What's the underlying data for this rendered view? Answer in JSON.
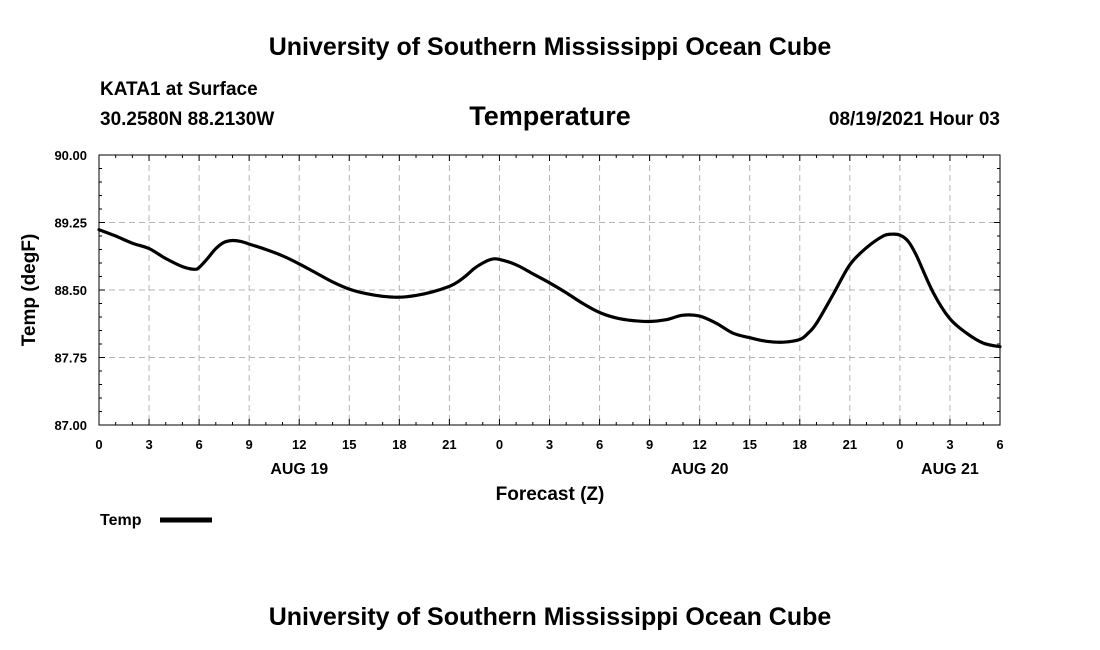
{
  "header": {
    "top_title": "University of Southern Mississippi Ocean Cube",
    "bottom_title": "University of Southern Mississippi Ocean Cube",
    "station": "KATA1 at Surface",
    "coords": "30.2580N  88.2130W",
    "datetime": "08/19/2021 Hour 03"
  },
  "chart_data": {
    "type": "line",
    "title": "Temperature",
    "xlabel": "Forecast (Z)",
    "ylabel": "Temp (degF)",
    "xlim": [
      0,
      54
    ],
    "ylim": [
      87.0,
      90.0
    ],
    "grid": true,
    "y_ticks": [
      "90.00",
      "89.25",
      "88.50",
      "87.75",
      "87.00"
    ],
    "y_tick_values": [
      90.0,
      89.25,
      88.5,
      87.75,
      87.0
    ],
    "x_ticks": [
      "0",
      "3",
      "6",
      "9",
      "12",
      "15",
      "18",
      "21",
      "0",
      "3",
      "6",
      "9",
      "12",
      "15",
      "18",
      "21",
      "0",
      "3",
      "6"
    ],
    "x_tick_hours": [
      0,
      3,
      6,
      9,
      12,
      15,
      18,
      21,
      24,
      27,
      30,
      33,
      36,
      39,
      42,
      45,
      48,
      51,
      54
    ],
    "date_labels": [
      {
        "label": "AUG 19",
        "hour": 12
      },
      {
        "label": "AUG 20",
        "hour": 36
      },
      {
        "label": "AUG 21",
        "hour": 51
      }
    ],
    "legend": {
      "label": "Temp",
      "position": "bottom-left"
    },
    "series": [
      {
        "name": "Temp",
        "color": "#000000",
        "x": [
          0,
          1,
          2,
          3,
          4,
          5,
          5.7,
          6,
          6.5,
          7,
          7.5,
          8,
          8.5,
          9,
          10,
          11,
          12,
          13,
          14,
          15,
          16,
          17,
          18,
          19,
          20,
          21,
          21.5,
          22,
          22.5,
          23,
          23.5,
          24,
          25,
          26,
          27,
          28,
          29,
          30,
          31,
          32,
          33,
          34,
          35,
          36,
          37,
          38,
          39,
          40,
          41,
          42,
          42.5,
          43,
          44,
          45,
          46,
          47,
          47.5,
          48,
          48.5,
          49,
          50,
          51,
          52,
          53,
          54
        ],
        "values": [
          89.17,
          89.1,
          89.02,
          88.96,
          88.85,
          88.76,
          88.73,
          88.75,
          88.85,
          88.96,
          89.03,
          89.05,
          89.04,
          89.01,
          88.95,
          88.88,
          88.79,
          88.69,
          88.59,
          88.51,
          88.46,
          88.43,
          88.42,
          88.44,
          88.48,
          88.54,
          88.59,
          88.66,
          88.74,
          88.8,
          88.84,
          88.84,
          88.78,
          88.68,
          88.58,
          88.47,
          88.35,
          88.25,
          88.19,
          88.16,
          88.15,
          88.17,
          88.22,
          88.21,
          88.13,
          88.02,
          87.97,
          87.93,
          87.92,
          87.95,
          88.02,
          88.13,
          88.45,
          88.78,
          88.97,
          89.1,
          89.12,
          89.11,
          89.04,
          88.88,
          88.47,
          88.18,
          88.02,
          87.91,
          87.87
        ]
      }
    ]
  }
}
